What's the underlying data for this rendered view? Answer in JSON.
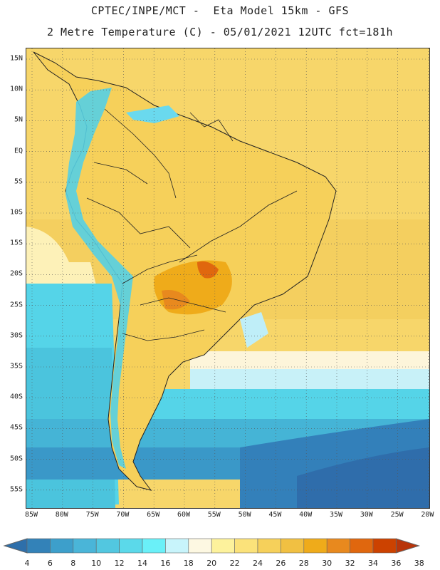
{
  "header": {
    "line1": "CPTEC/INPE/MCT -  Eta Model 15km - GFS",
    "line2": "2 Metre Temperature (C) - 05/01/2021 12UTC fct=181h"
  },
  "map": {
    "lat_labels": [
      "15N",
      "10N",
      "5N",
      "EQ",
      "5S",
      "10S",
      "15S",
      "20S",
      "25S",
      "30S",
      "35S",
      "40S",
      "45S",
      "50S",
      "55S"
    ],
    "lon_labels": [
      "85W",
      "80W",
      "75W",
      "70W",
      "65W",
      "60W",
      "55W",
      "50W",
      "45W",
      "40W",
      "35W",
      "30W",
      "25W",
      "20W"
    ]
  },
  "colorbar": {
    "levels": [
      "4",
      "6",
      "8",
      "10",
      "12",
      "14",
      "16",
      "18",
      "20",
      "22",
      "24",
      "26",
      "28",
      "30",
      "32",
      "34",
      "36",
      "38"
    ],
    "colors": [
      "#2e6faa",
      "#3382b8",
      "#3d9fcb",
      "#4ab5d8",
      "#52c7e0",
      "#5bd9ea",
      "#6af0f8",
      "#c8f4fb",
      "#fdf8e2",
      "#fdf29c",
      "#fbe27a",
      "#f6d05a",
      "#f1c042",
      "#efab1a",
      "#e8891e",
      "#e0670e",
      "#cc4200",
      "#b8350a"
    ]
  }
}
